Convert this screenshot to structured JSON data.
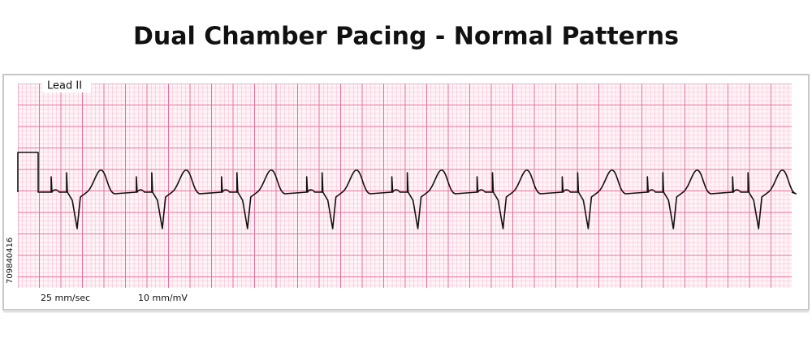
{
  "header": {
    "title": "Dual Chamber Pacing - Normal Patterns"
  },
  "strip": {
    "lead": "Lead II",
    "paper_speed": "25 mm/sec",
    "gain": "10 mm/mV"
  },
  "watermark": {
    "id": "709840416"
  }
}
